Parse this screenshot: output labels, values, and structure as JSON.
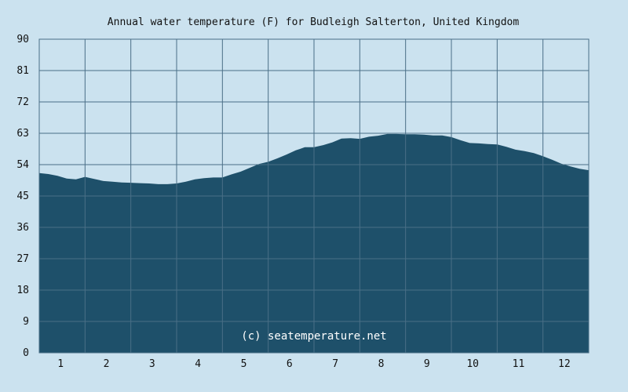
{
  "chart_data": {
    "type": "area",
    "title": "Annual water temperature (F) for Budleigh Salterton, United Kingdom",
    "xlabel": "",
    "ylabel": "",
    "x_categories": [
      "1",
      "2",
      "3",
      "4",
      "5",
      "6",
      "7",
      "8",
      "9",
      "10",
      "11",
      "12"
    ],
    "y_ticks": [
      0,
      9,
      18,
      27,
      36,
      45,
      54,
      63,
      72,
      81,
      90
    ],
    "ylim": [
      0,
      90
    ],
    "xlim": [
      0.5,
      12.5
    ],
    "grid": true,
    "area_color": "#1e506a",
    "background_color": "#cbe2ef",
    "grid_color": "#4a6f87",
    "credit": "(c) seatemperature.net",
    "series": [
      {
        "x": [
          0.5,
          0.7,
          0.9,
          1.1,
          1.3,
          1.5,
          1.7,
          1.9,
          2.1,
          2.3,
          2.5,
          2.7,
          2.9,
          3.1,
          3.3,
          3.5,
          3.7,
          3.9,
          4.1,
          4.3,
          4.5,
          4.7,
          4.9,
          5.1,
          5.3,
          5.5,
          5.7,
          5.9,
          6.1,
          6.3,
          6.5,
          6.7,
          6.9,
          7.1,
          7.3,
          7.5,
          7.7,
          7.9,
          8.1,
          8.3,
          8.5,
          8.7,
          8.9,
          9.1,
          9.3,
          9.5,
          9.7,
          9.9,
          10.1,
          10.3,
          10.5,
          10.7,
          10.9,
          11.1,
          11.3,
          11.5,
          11.7,
          11.9,
          12.1,
          12.3,
          12.5
        ],
        "y": [
          51.6,
          51.3,
          50.8,
          50.0,
          49.8,
          50.5,
          49.9,
          49.3,
          49.1,
          48.9,
          48.8,
          48.7,
          48.6,
          48.4,
          48.4,
          48.6,
          49.1,
          49.8,
          50.1,
          50.3,
          50.3,
          51.2,
          52.0,
          53.1,
          54.2,
          54.8,
          55.8,
          56.9,
          58.1,
          59.0,
          59.0,
          59.6,
          60.4,
          61.5,
          61.6,
          61.4,
          62.0,
          62.3,
          62.8,
          62.8,
          62.7,
          62.7,
          62.6,
          62.4,
          62.4,
          61.9,
          61.0,
          60.2,
          60.1,
          59.9,
          59.8,
          59.1,
          58.3,
          57.9,
          57.3,
          56.4,
          55.4,
          54.3,
          53.5,
          52.8,
          52.4
        ]
      }
    ]
  }
}
